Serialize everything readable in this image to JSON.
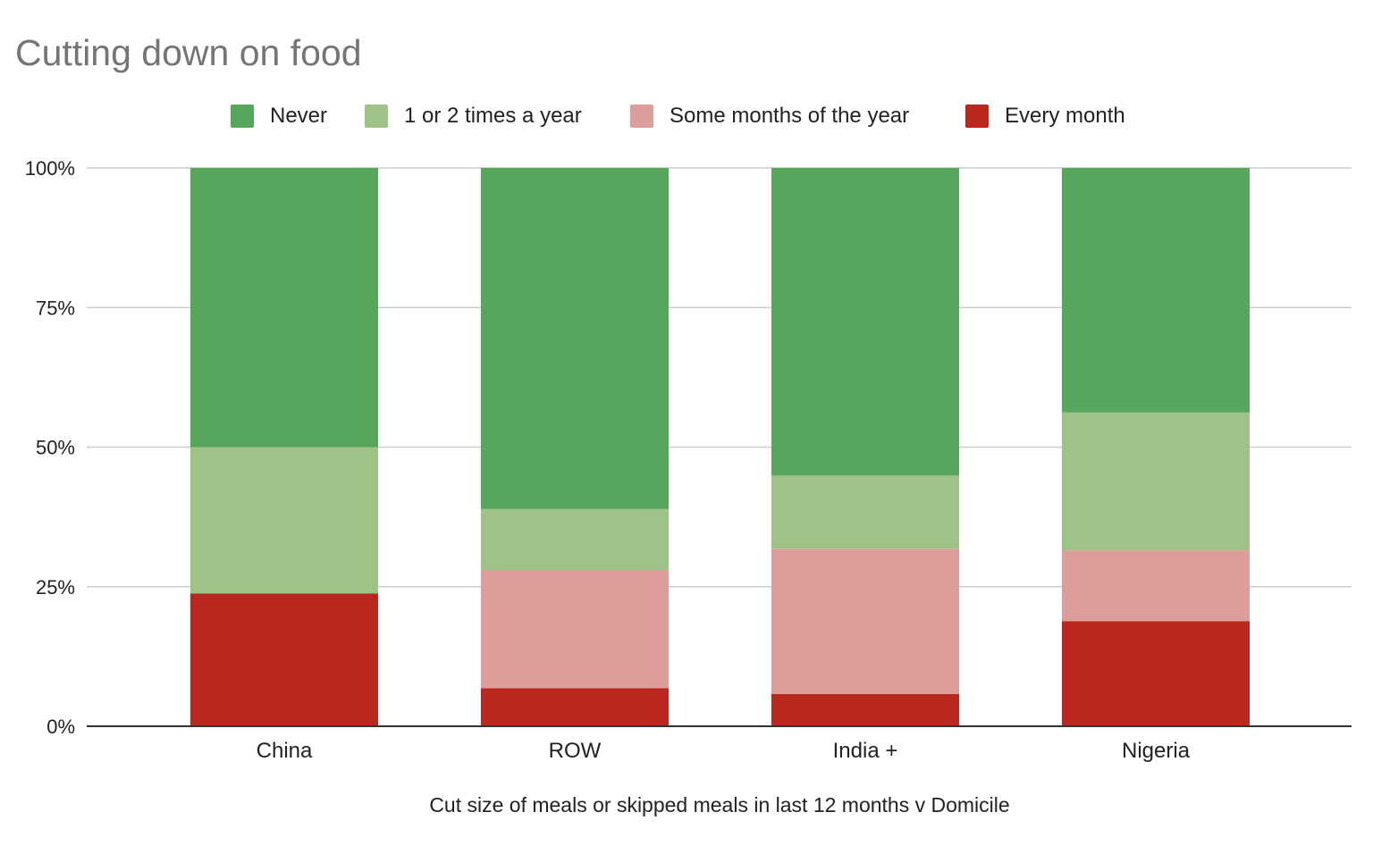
{
  "chart_data": {
    "type": "bar",
    "stacked": true,
    "percent_stacked": true,
    "title": "Cutting down on food",
    "xlabel": "Cut size of meals or skipped meals in last 12 months v Domicile",
    "ylabel": "",
    "ylim": [
      0,
      100
    ],
    "yticks": [
      "0%",
      "25%",
      "50%",
      "75%",
      "100%"
    ],
    "ytick_values": [
      0,
      25,
      50,
      75,
      100
    ],
    "grid": true,
    "legend_position": "top",
    "categories": [
      "China",
      "ROW",
      "India +",
      "Nigeria"
    ],
    "series": [
      {
        "name": "Every month",
        "color": "#b9271e",
        "values": [
          23.8,
          6.8,
          5.8,
          18.8
        ]
      },
      {
        "name": "Some months of the year",
        "color": "#dd9d9b",
        "values": [
          0,
          21.2,
          26.0,
          12.7
        ]
      },
      {
        "name": "1 or 2 times a year",
        "color": "#9fc386",
        "values": [
          26.2,
          10.9,
          13.1,
          24.7
        ]
      },
      {
        "name": "Never",
        "color": "#58a65c",
        "values": [
          50.0,
          61.1,
          55.1,
          43.8
        ]
      }
    ],
    "legend_order": [
      "Never",
      "1 or 2 times a year",
      "Some months of the year",
      "Every month"
    ]
  },
  "legend": [
    {
      "label": "Never",
      "color": "#58a65c"
    },
    {
      "label": "1 or 2 times a year",
      "color": "#9fc386"
    },
    {
      "label": "Some months of the year",
      "color": "#dd9d9b"
    },
    {
      "label": "Every month",
      "color": "#b9271e"
    }
  ]
}
